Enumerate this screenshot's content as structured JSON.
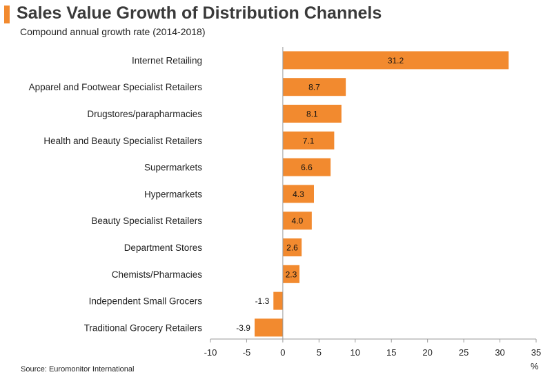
{
  "header": {
    "title": "Sales Value Growth of Distribution Channels",
    "subtitle": "Compound annual growth rate (2014-2018)"
  },
  "footer": {
    "source": "Source: Euromonitor International",
    "unit": "%"
  },
  "colors": {
    "accent": "#f28a2f",
    "bar": "#f28a2f",
    "axis": "#9a9a9a"
  },
  "chart_data": {
    "type": "bar",
    "orientation": "horizontal",
    "categories": [
      "Internet Retailing",
      "Apparel and Footwear Specialist Retailers",
      "Drugstores/parapharmacies",
      "Health and Beauty Specialist Retailers",
      "Supermarkets",
      "Hypermarkets",
      "Beauty Specialist Retailers",
      "Department Stores",
      "Chemists/Pharmacies",
      "Independent Small Grocers",
      "Traditional Grocery Retailers"
    ],
    "values": [
      31.2,
      8.7,
      8.1,
      7.1,
      6.6,
      4.3,
      4.0,
      2.6,
      2.3,
      -1.3,
      -3.9
    ],
    "value_labels": [
      "31.2",
      "8.7",
      "8.1",
      "7.1",
      "6.6",
      "4.3",
      "4.0",
      "2.6",
      "2.3",
      "-1.3",
      "-3.9"
    ],
    "xlim": [
      -10,
      35
    ],
    "xticks": [
      -10,
      -5,
      0,
      5,
      10,
      15,
      20,
      25,
      30,
      35
    ],
    "xtick_labels": [
      "-10",
      "-5",
      "0",
      "5",
      "10",
      "15",
      "20",
      "25",
      "30",
      "35"
    ],
    "grid": false,
    "legend": "none"
  }
}
